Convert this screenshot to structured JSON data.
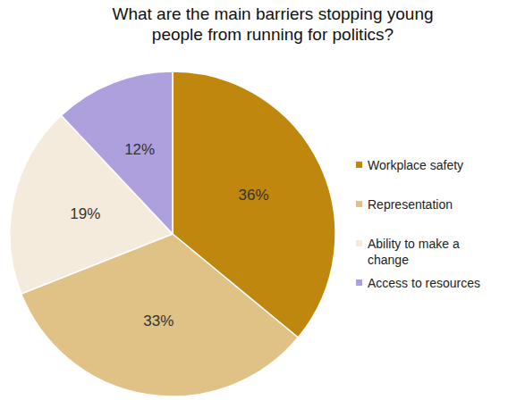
{
  "chart_data": {
    "type": "pie",
    "title": "What are the main barriers stopping young people from running for politics?",
    "categories": [
      "Workplace safety",
      "Representation",
      "Ability to make a change",
      "Access to resources"
    ],
    "values": [
      36,
      33,
      19,
      12
    ],
    "value_labels": [
      "36%",
      "33%",
      "19%",
      "12%"
    ],
    "colors": [
      "#c0870f",
      "#e0c286",
      "#f5ebdc",
      "#ae9fdd"
    ],
    "data_labels": true,
    "legend": "right"
  }
}
